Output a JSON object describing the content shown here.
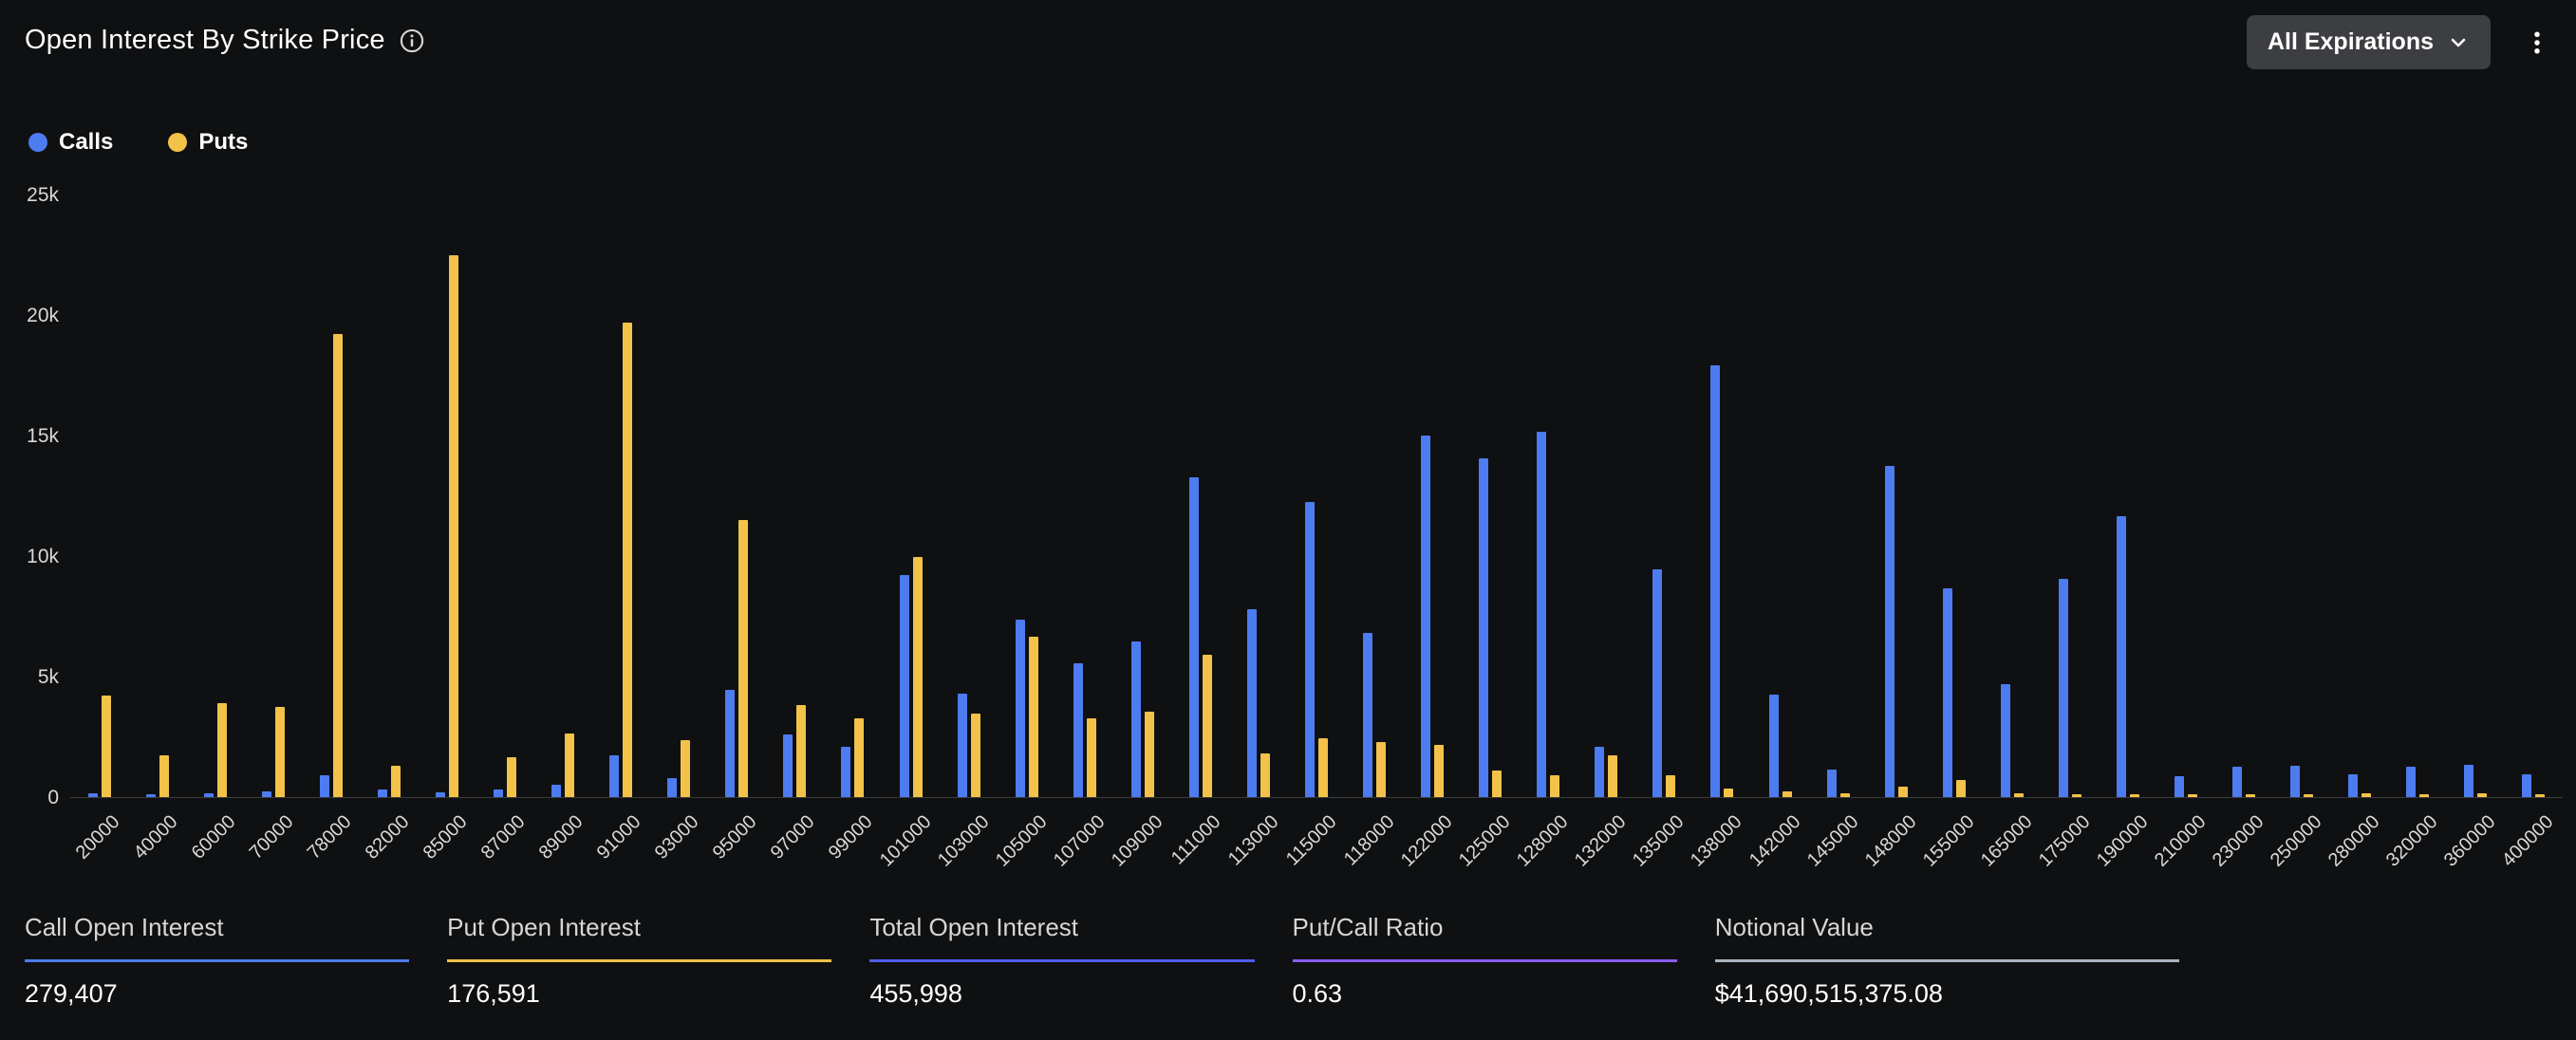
{
  "header": {
    "title": "Open Interest By Strike Price",
    "filter_label": "All Expirations"
  },
  "legend": {
    "calls": "Calls",
    "puts": "Puts"
  },
  "colors": {
    "background": "#0f1011",
    "calls": "#4d7bf0",
    "puts": "#f2c249",
    "total_accent": "#4d5ef0",
    "ratio_accent": "#8b5cf6",
    "notional_accent": "#aab4c0",
    "axis_text": "#d9d9d9",
    "baseline": "#3c3c3c",
    "button_bg": "#3d3e41"
  },
  "chart_data": {
    "type": "bar",
    "title": "Open Interest By Strike Price",
    "xlabel": "",
    "ylabel": "",
    "ylim": [
      0,
      25000
    ],
    "yticks": [
      "0",
      "5k",
      "10k",
      "15k",
      "20k",
      "25k"
    ],
    "ytick_values": [
      0,
      5000,
      10000,
      15000,
      20000,
      25000
    ],
    "grid": false,
    "legend_position": "top-left",
    "categories": [
      "20000",
      "40000",
      "60000",
      "70000",
      "78000",
      "82000",
      "85000",
      "87000",
      "89000",
      "91000",
      "93000",
      "95000",
      "97000",
      "99000",
      "101000",
      "103000",
      "105000",
      "107000",
      "109000",
      "111000",
      "113000",
      "115000",
      "118000",
      "122000",
      "125000",
      "128000",
      "132000",
      "135000",
      "138000",
      "142000",
      "145000",
      "148000",
      "155000",
      "165000",
      "175000",
      "190000",
      "210000",
      "230000",
      "250000",
      "280000",
      "320000",
      "360000",
      "400000"
    ],
    "series": [
      {
        "name": "Calls",
        "color": "#4d7bf0",
        "values": [
          150,
          120,
          150,
          250,
          900,
          300,
          200,
          300,
          500,
          1750,
          800,
          4450,
          2600,
          2100,
          9200,
          4300,
          7350,
          5550,
          6450,
          13250,
          7800,
          12250,
          6800,
          15000,
          14050,
          15150,
          2100,
          9450,
          17900,
          4250,
          1150,
          13750,
          8650,
          4700,
          9050,
          11650,
          850,
          1250,
          1300,
          950,
          1250,
          1350,
          950
        ]
      },
      {
        "name": "Puts",
        "color": "#f2c249",
        "values": [
          4200,
          1750,
          3900,
          3750,
          19200,
          1300,
          22500,
          1650,
          2650,
          19700,
          2350,
          11500,
          3800,
          3250,
          9950,
          3450,
          6650,
          3250,
          3550,
          5900,
          1800,
          2450,
          2300,
          2150,
          1100,
          900,
          1750,
          900,
          350,
          250,
          150,
          450,
          700,
          150,
          120,
          100,
          120,
          100,
          120,
          150,
          100,
          150,
          100
        ]
      }
    ]
  },
  "stats": {
    "items": [
      {
        "label": "Call Open Interest",
        "value": "279,407",
        "accent": "#4d7bf0"
      },
      {
        "label": "Put Open Interest",
        "value": "176,591",
        "accent": "#f2c249"
      },
      {
        "label": "Total Open Interest",
        "value": "455,998",
        "accent": "#4d5ef0"
      },
      {
        "label": "Put/Call Ratio",
        "value": "0.63",
        "accent": "#8b5cf6"
      },
      {
        "label": "Notional Value",
        "value": "$41,690,515,375.08",
        "accent": "#aab4c0"
      }
    ]
  }
}
